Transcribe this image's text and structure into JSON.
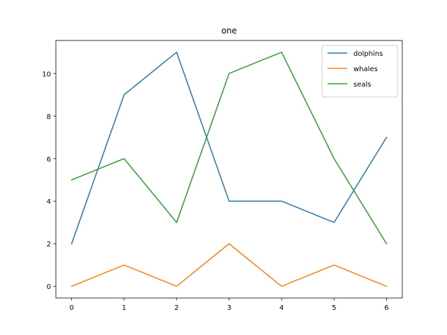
{
  "chart_data": {
    "type": "line",
    "title": "one",
    "xlabel": "",
    "ylabel": "",
    "x": [
      0,
      1,
      2,
      3,
      4,
      5,
      6
    ],
    "xlim": [
      -0.3,
      6.3
    ],
    "ylim": [
      -0.55,
      11.55
    ],
    "xticks": [
      0,
      1,
      2,
      3,
      4,
      5,
      6
    ],
    "yticks": [
      0,
      2,
      4,
      6,
      8,
      10
    ],
    "grid": false,
    "legend": "top-right",
    "series": [
      {
        "name": "dolphins",
        "color": "#1f77b4",
        "values": [
          2,
          9,
          11,
          4,
          4,
          3,
          7
        ]
      },
      {
        "name": "whales",
        "color": "#ff7f0e",
        "values": [
          0,
          1,
          0,
          2,
          0,
          1,
          0
        ]
      },
      {
        "name": "seals",
        "color": "#2ca02c",
        "values": [
          5,
          6,
          3,
          10,
          11,
          6,
          2
        ]
      }
    ]
  }
}
